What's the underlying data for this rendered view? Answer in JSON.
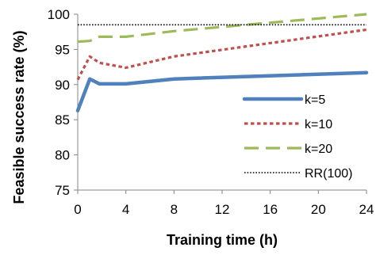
{
  "chart_data": {
    "type": "line",
    "xlabel": "Training time (h)",
    "ylabel": "Feasible success rate (%)",
    "xlim": [
      0,
      24
    ],
    "ylim": [
      75,
      100
    ],
    "xticks": [
      "0",
      "4",
      "8",
      "12",
      "16",
      "20",
      "24"
    ],
    "yticks": [
      "75",
      "80",
      "85",
      "90",
      "95",
      "100"
    ],
    "grid": false,
    "legend_position": "bottom-right",
    "series": [
      {
        "name": "k=5",
        "color": "#4F81BD",
        "style": "solid",
        "points": [
          [
            0,
            86.3
          ],
          [
            1,
            90.8
          ],
          [
            1.8,
            90.1
          ],
          [
            4,
            90.1
          ],
          [
            8,
            90.8
          ],
          [
            24,
            91.7
          ]
        ]
      },
      {
        "name": "k=10",
        "color": "#C0504D",
        "style": "dotted",
        "points": [
          [
            0,
            90.7
          ],
          [
            1,
            94.0
          ],
          [
            1.8,
            93.1
          ],
          [
            4,
            92.4
          ],
          [
            8,
            94.0
          ],
          [
            24,
            97.8
          ]
        ]
      },
      {
        "name": "k=20",
        "color": "#9BBB59",
        "style": "dashed",
        "points": [
          [
            0,
            96.1
          ],
          [
            1,
            96.2
          ],
          [
            1.8,
            96.8
          ],
          [
            4,
            96.8
          ],
          [
            8,
            97.6
          ],
          [
            24,
            100.0
          ]
        ]
      },
      {
        "name": "RR(100)",
        "color": "#000000",
        "style": "fine-dotted",
        "points": [
          [
            0,
            98.5
          ],
          [
            24,
            98.5
          ]
        ]
      }
    ]
  }
}
